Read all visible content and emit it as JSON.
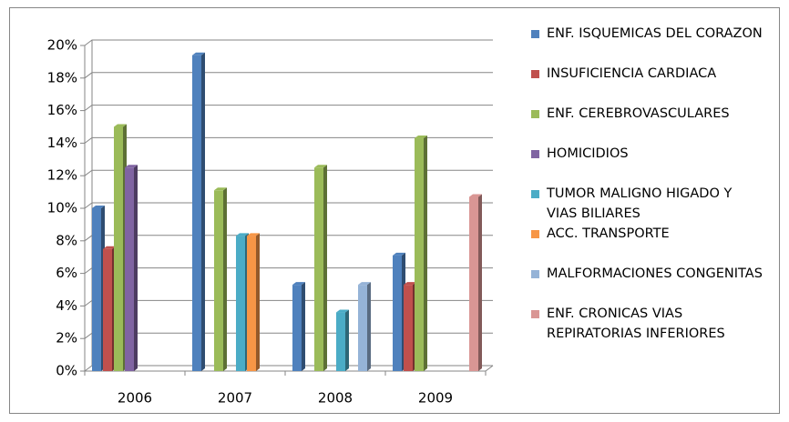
{
  "chart_data": {
    "type": "bar",
    "categories": [
      "2006",
      "2007",
      "2008",
      "2009"
    ],
    "series": [
      {
        "name": "ENF. ISQUEMICAS DEL CORAZON",
        "color": "#4f81bd",
        "values": [
          10,
          19.4,
          5.3,
          7.1
        ]
      },
      {
        "name": "INSUFICIENCIA CARDIACA",
        "color": "#c0504d",
        "values": [
          7.5,
          null,
          null,
          5.3
        ]
      },
      {
        "name": "ENF. CEREBROVASCULARES",
        "color": "#9bbb59",
        "values": [
          15,
          11.1,
          12.5,
          14.3
        ]
      },
      {
        "name": "HOMICIDIOS",
        "color": "#8064a2",
        "values": [
          12.5,
          null,
          null,
          null
        ]
      },
      {
        "name": "TUMOR MALIGNO HIGADO Y VIAS BILIARES",
        "color": "#4bacc6",
        "values": [
          null,
          8.3,
          3.6,
          null
        ]
      },
      {
        "name": "ACC. TRANSPORTE",
        "color": "#f79646",
        "values": [
          null,
          8.3,
          null,
          null
        ]
      },
      {
        "name": "MALFORMACIONES CONGENITAS",
        "color": "#95b3d7",
        "values": [
          null,
          null,
          5.3,
          null
        ]
      },
      {
        "name": "ENF. CRONICAS VIAS REPIRATORIAS INFERIORES",
        "color": "#d99694",
        "values": [
          null,
          null,
          null,
          10.7
        ]
      }
    ],
    "ylim": [
      0,
      20
    ],
    "yticks": [
      {
        "value": 0,
        "label": "0%"
      },
      {
        "value": 2,
        "label": "2%"
      },
      {
        "value": 4,
        "label": "4%"
      },
      {
        "value": 6,
        "label": "6%"
      },
      {
        "value": 8,
        "label": "8%"
      },
      {
        "value": 10,
        "label": "10%"
      },
      {
        "value": 12,
        "label": "12%"
      },
      {
        "value": 14,
        "label": "14%"
      },
      {
        "value": 16,
        "label": "16%"
      },
      {
        "value": 18,
        "label": "18%"
      },
      {
        "value": 20,
        "label": "20%"
      }
    ],
    "grid": true
  }
}
